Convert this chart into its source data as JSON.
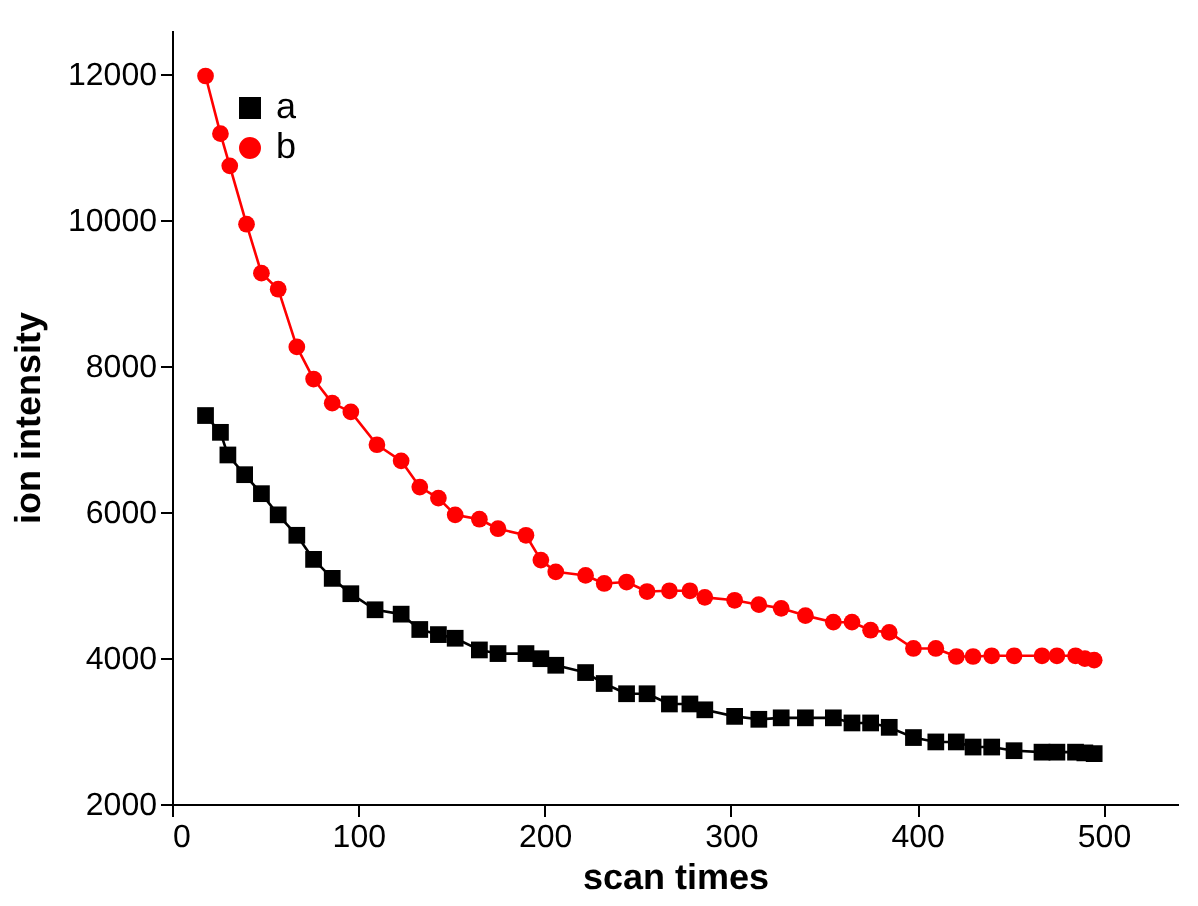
{
  "chart_data": {
    "type": "line",
    "xlabel": "scan times",
    "ylabel": "ion intensity",
    "xlim": [
      0,
      540
    ],
    "xticks": [
      0,
      100,
      200,
      300,
      400,
      500
    ],
    "ylim": [
      2000,
      12600
    ],
    "yticks": [
      2000,
      4000,
      6000,
      8000,
      10000,
      12000
    ],
    "grid": false,
    "legend": "top left",
    "line_style": "solid",
    "series": [
      {
        "name": "a",
        "color": "#000000",
        "marker": "square",
        "x": [
          18,
          26,
          30,
          39,
          48,
          57,
          67,
          76,
          86,
          96,
          109,
          123,
          133,
          143,
          152,
          165,
          175,
          190,
          198,
          206,
          222,
          232,
          244,
          255,
          267,
          278,
          286,
          302,
          315,
          327,
          340,
          355,
          365,
          375,
          385,
          398,
          410,
          421,
          430,
          440,
          452,
          467,
          475,
          485,
          490,
          495
        ],
        "values": [
          7320,
          7090,
          6780,
          6510,
          6250,
          5960,
          5680,
          5350,
          5090,
          4880,
          4660,
          4600,
          4390,
          4320,
          4270,
          4110,
          4060,
          4060,
          3990,
          3900,
          3800,
          3650,
          3510,
          3510,
          3370,
          3370,
          3290,
          3200,
          3160,
          3180,
          3180,
          3180,
          3110,
          3110,
          3050,
          2910,
          2850,
          2850,
          2780,
          2780,
          2730,
          2710,
          2710,
          2710,
          2700,
          2690
        ]
      },
      {
        "name": "b",
        "color": "#ff0000",
        "marker": "circle",
        "x": [
          18,
          26,
          31,
          40,
          48,
          57,
          67,
          76,
          86,
          96,
          110,
          123,
          133,
          143,
          152,
          165,
          175,
          190,
          198,
          206,
          222,
          232,
          244,
          255,
          267,
          278,
          286,
          302,
          315,
          327,
          340,
          355,
          365,
          375,
          385,
          398,
          410,
          421,
          430,
          440,
          452,
          467,
          475,
          485,
          490,
          495
        ],
        "values": [
          11970,
          11180,
          10740,
          9940,
          9270,
          9050,
          8260,
          7820,
          7490,
          7370,
          6920,
          6700,
          6340,
          6190,
          5960,
          5900,
          5770,
          5680,
          5340,
          5180,
          5130,
          5020,
          5040,
          4910,
          4920,
          4920,
          4830,
          4790,
          4730,
          4680,
          4580,
          4490,
          4490,
          4380,
          4350,
          4130,
          4130,
          4020,
          4020,
          4030,
          4030,
          4030,
          4030,
          4030,
          3990,
          3970
        ]
      }
    ]
  }
}
